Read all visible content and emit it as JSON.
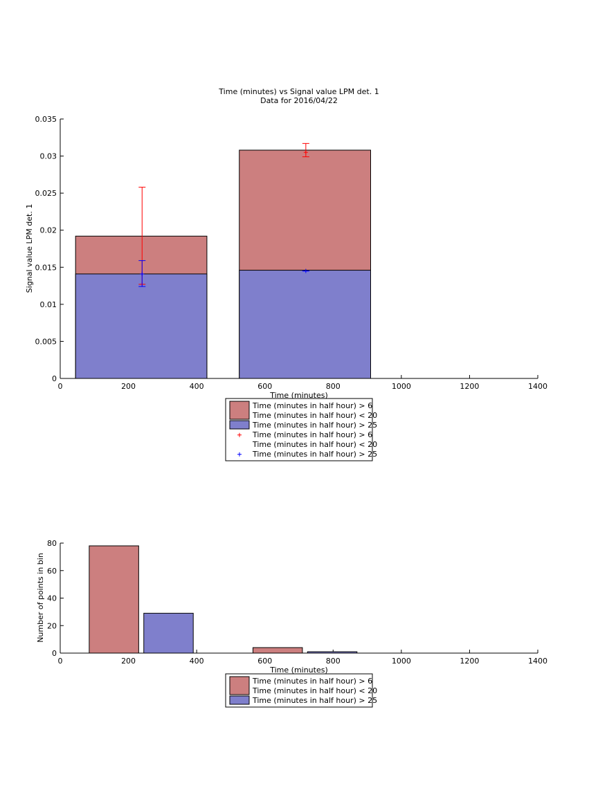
{
  "chart_data": [
    {
      "type": "bar",
      "title": "Time (minutes) vs Signal value LPM det. 1",
      "subtitle": "Data for 2016/04/22",
      "xlabel": "Time (minutes)",
      "ylabel": "Signal value LPM det. 1",
      "xlim": [
        0,
        1400
      ],
      "ylim": [
        0,
        0.035
      ],
      "xticks": [
        "0",
        "200",
        "400",
        "600",
        "800",
        "1000",
        "1200",
        "1400"
      ],
      "yticks": [
        "0",
        "0.005",
        "0.01",
        "0.015",
        "0.02",
        "0.025",
        "0.03",
        "0.035"
      ],
      "grid": false,
      "legend_position": "below",
      "bars": [
        {
          "x_start": 45,
          "x_end": 430,
          "values": [
            0.0192,
            0.0141
          ]
        },
        {
          "x_start": 525,
          "x_end": 910,
          "values": [
            0.0308,
            0.0146
          ]
        }
      ],
      "series": [
        {
          "name": "Time (minutes in half hour) > 6\nTime (minutes in half hour) < 20",
          "kind": "bar",
          "color": "#cc7f7f"
        },
        {
          "name": "Time (minutes in half hour) > 25",
          "kind": "bar",
          "color": "#7f7fcc"
        },
        {
          "name": "Time (minutes in half hour) > 6\nTime (minutes in half hour) < 20",
          "kind": "errorbar",
          "color": "#ff0000",
          "points": [
            {
              "x": 240,
              "y": 0.0127,
              "low": 0.0127,
              "high": 0.0258
            },
            {
              "x": 720,
              "y": 0.0305,
              "low": 0.0299,
              "high": 0.0317
            }
          ]
        },
        {
          "name": "Time (minutes in half hour) > 25",
          "kind": "errorbar",
          "color": "#0000ff",
          "points": [
            {
              "x": 240,
              "y": 0.0141,
              "low": 0.0124,
              "high": 0.0159
            },
            {
              "x": 720,
              "y": 0.0145,
              "low": 0.0145,
              "high": 0.0145
            }
          ]
        }
      ]
    },
    {
      "type": "bar",
      "title": "",
      "xlabel": "Time (minutes)",
      "ylabel": "Number of points in bin",
      "xlim": [
        0,
        1400
      ],
      "ylim": [
        0,
        80
      ],
      "xticks": [
        "0",
        "200",
        "400",
        "600",
        "800",
        "1000",
        "1200",
        "1400"
      ],
      "yticks": [
        "0",
        "20",
        "40",
        "60",
        "80"
      ],
      "grid": false,
      "legend_position": "below",
      "bars": [
        {
          "x_start": 85,
          "x_end": 230,
          "value": 78,
          "series": 0
        },
        {
          "x_start": 245,
          "x_end": 390,
          "value": 29,
          "series": 1
        },
        {
          "x_start": 565,
          "x_end": 710,
          "value": 4,
          "series": 0
        },
        {
          "x_start": 725,
          "x_end": 870,
          "value": 1,
          "series": 1
        }
      ],
      "series": [
        {
          "name": "Time (minutes in half hour) > 6\nTime (minutes in half hour) < 20",
          "kind": "bar",
          "color": "#cc7f7f"
        },
        {
          "name": "Time (minutes in half hour) > 25",
          "kind": "bar",
          "color": "#7f7fcc"
        }
      ]
    }
  ]
}
